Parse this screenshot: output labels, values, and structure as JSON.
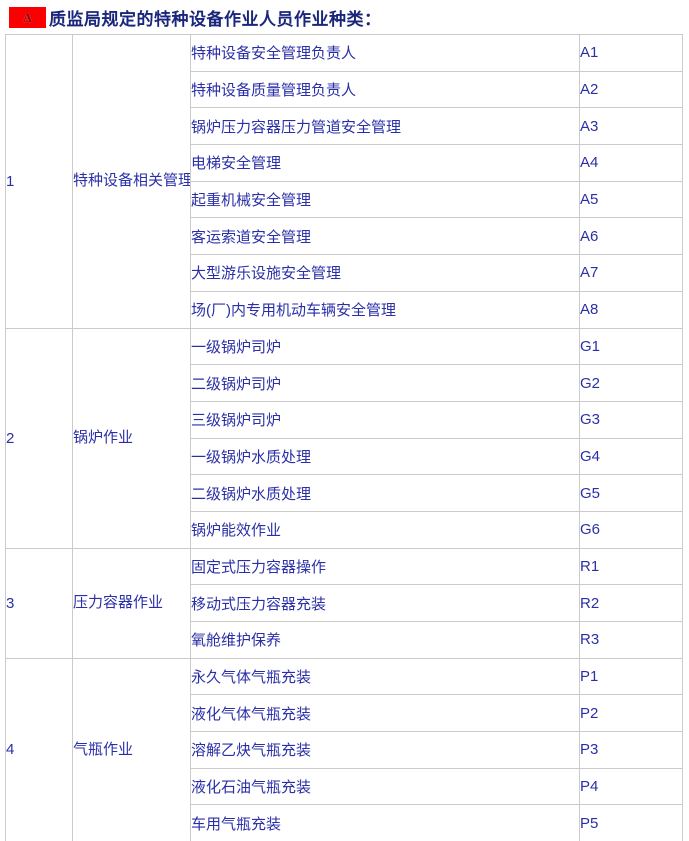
{
  "header": {
    "badge": "A",
    "title": "质监局规定的特种设备作业人员作业种类："
  },
  "colors": {
    "badge_background": "#fb0000",
    "badge_letter": "#8b0000",
    "title_text": "#1a267c",
    "body_text": "#2a2fa7",
    "table_border": "#cbcbcb",
    "page_background": "#ffffff"
  },
  "table": {
    "sections": [
      {
        "num": "1",
        "category": "特种设备相关管理",
        "items": [
          {
            "name": "特种设备安全管理负责人",
            "code": "A1"
          },
          {
            "name": "特种设备质量管理负责人",
            "code": "A2"
          },
          {
            "name": "锅炉压力容器压力管道安全管理",
            "code": "A3"
          },
          {
            "name": "电梯安全管理",
            "code": "A4"
          },
          {
            "name": "起重机械安全管理",
            "code": "A5"
          },
          {
            "name": "客运索道安全管理",
            "code": "A6"
          },
          {
            "name": "大型游乐设施安全管理",
            "code": "A7"
          },
          {
            "name": "场(厂)内专用机动车辆安全管理",
            "code": "A8"
          }
        ]
      },
      {
        "num": "2",
        "category": "锅炉作业",
        "items": [
          {
            "name": "一级锅炉司炉",
            "code": "G1"
          },
          {
            "name": "二级锅炉司炉",
            "code": "G2"
          },
          {
            "name": "三级锅炉司炉",
            "code": "G3"
          },
          {
            "name": "一级锅炉水质处理",
            "code": "G4"
          },
          {
            "name": "二级锅炉水质处理",
            "code": "G5"
          },
          {
            "name": "锅炉能效作业",
            "code": "G6"
          }
        ]
      },
      {
        "num": "3",
        "category": "压力容器作业",
        "items": [
          {
            "name": "固定式压力容器操作",
            "code": "R1"
          },
          {
            "name": "移动式压力容器充装",
            "code": "R2"
          },
          {
            "name": "氧舱维护保养",
            "code": "R3"
          }
        ]
      },
      {
        "num": "4",
        "category": "气瓶作业",
        "items": [
          {
            "name": "永久气体气瓶充装",
            "code": "P1"
          },
          {
            "name": "液化气体气瓶充装",
            "code": "P2"
          },
          {
            "name": "溶解乙炔气瓶充装",
            "code": "P3"
          },
          {
            "name": "液化石油气瓶充装",
            "code": "P4"
          },
          {
            "name": "车用气瓶充装",
            "code": "P5"
          }
        ]
      }
    ]
  }
}
